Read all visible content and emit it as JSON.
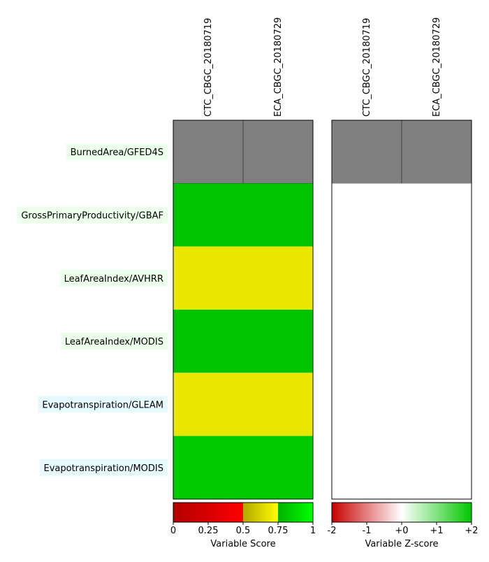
{
  "chart_data": [
    {
      "type": "heatmap",
      "columns": [
        "CTC_CBGC_20180719",
        "ECA_CBGC_20180729"
      ],
      "rows": [
        {
          "label": "BurnedArea/GFED4S",
          "label_bg": "#ecfeec",
          "values": [
            null,
            null
          ],
          "merged": false
        },
        {
          "label": "GrossPrimaryProductivity/GBAF",
          "label_bg": "#ecfeec",
          "values": [
            0.81,
            0.81
          ],
          "merged": true
        },
        {
          "label": "LeafAreaIndex/AVHRR",
          "label_bg": "#ecfeec",
          "values": [
            0.68,
            0.68
          ],
          "merged": true
        },
        {
          "label": "LeafAreaIndex/MODIS",
          "label_bg": "#ecfeec",
          "values": [
            0.81,
            0.81
          ],
          "merged": true
        },
        {
          "label": "Evapotranspiration/GLEAM",
          "label_bg": "#e6fafe",
          "values": [
            0.68,
            0.68
          ],
          "merged": true
        },
        {
          "label": "Evapotranspiration/MODIS",
          "label_bg": "#e6fafe",
          "values": [
            0.83,
            0.83
          ],
          "merged": true
        }
      ],
      "missing_color": "#808080",
      "colorbar": {
        "label": "Variable Score",
        "ticks": [
          "0",
          "0.25",
          "0.5",
          "0.75",
          "1"
        ],
        "range": [
          0,
          1
        ],
        "bands": [
          {
            "from": 0.0,
            "to": 0.5,
            "start": "#b20000",
            "end": "#ff0000"
          },
          {
            "from": 0.5,
            "to": 0.75,
            "start": "#b2a800",
            "end": "#ffff00"
          },
          {
            "from": 0.75,
            "to": 1.0,
            "start": "#00b200",
            "end": "#00ff00"
          }
        ]
      }
    },
    {
      "type": "heatmap",
      "columns": [
        "CTC_CBGC_20180719",
        "ECA_CBGC_20180729"
      ],
      "rows": [
        {
          "values": [
            null,
            null
          ],
          "merged": false
        },
        {
          "values": [
            0,
            0
          ],
          "merged": true
        },
        {
          "values": [
            0,
            0
          ],
          "merged": true
        },
        {
          "values": [
            0,
            0
          ],
          "merged": true
        },
        {
          "values": [
            0,
            0
          ],
          "merged": true
        },
        {
          "values": [
            0,
            0
          ],
          "merged": true
        }
      ],
      "missing_color": "#808080",
      "colorbar": {
        "label": "Variable Z-score",
        "ticks": [
          "-2",
          "-1",
          "+0",
          "+1",
          "+2"
        ],
        "range": [
          -2,
          2
        ],
        "stops": [
          "#c80000",
          "#ffffff",
          "#00c800"
        ]
      }
    }
  ]
}
